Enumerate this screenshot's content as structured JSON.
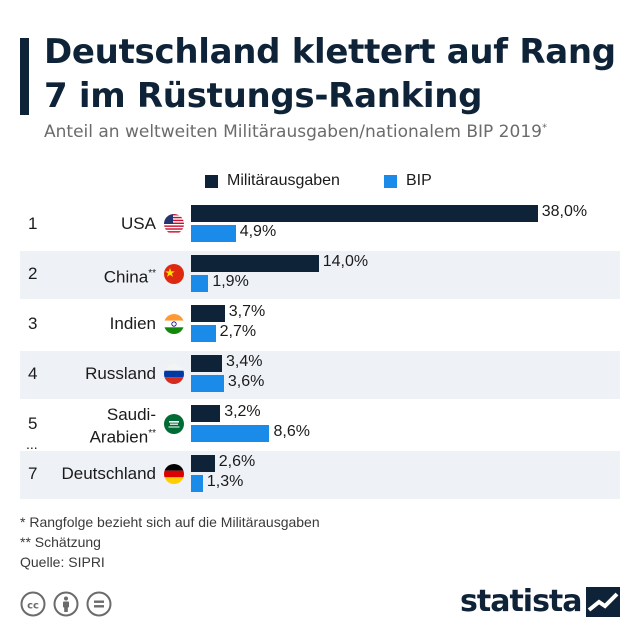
{
  "header": {
    "title": "Deutschland klettert auf Rang 7 im Rüstungs-Ranking",
    "subtitle": "Anteil an weltweiten Militärausgaben/nationalem BIP 2019",
    "subtitle_mark": "*"
  },
  "legend": {
    "military": "Militärausgaben",
    "gdp": "BIP"
  },
  "colors": {
    "military": "#0f2338",
    "gdp": "#1a8be8",
    "row_shade": "#eef1f6"
  },
  "chart_data": {
    "type": "bar",
    "orientation": "horizontal",
    "title": "Deutschland klettert auf Rang 7 im Rüstungs-Ranking",
    "subtitle": "Anteil an weltweiten Militärausgaben/nationalem BIP 2019*",
    "xlim": [
      0,
      40
    ],
    "grid": false,
    "legend_position": "top",
    "categories": [
      "USA",
      "China",
      "Indien",
      "Russland",
      "Saudi-Arabien",
      "Deutschland"
    ],
    "ranks": [
      "1",
      "2",
      "3",
      "4",
      "5",
      "7"
    ],
    "name_marks": [
      "",
      "**",
      "",
      "",
      "**",
      ""
    ],
    "flag_icons": [
      "us-flag-icon",
      "china-flag-icon",
      "india-flag-icon",
      "russia-flag-icon",
      "saudi-arabia-flag-icon",
      "germany-flag-icon"
    ],
    "series": [
      {
        "name": "Militärausgaben",
        "values": [
          38.0,
          14.0,
          3.7,
          3.4,
          3.2,
          2.6
        ],
        "labels": [
          "38,0%",
          "14,0%",
          "3,7%",
          "3,4%",
          "3,2%",
          "2,6%"
        ]
      },
      {
        "name": "BIP",
        "values": [
          4.9,
          1.9,
          2.7,
          3.6,
          8.6,
          1.3
        ],
        "labels": [
          "4,9%",
          "1,9%",
          "2,7%",
          "3,6%",
          "8,6%",
          "1,3%"
        ]
      }
    ],
    "gap_marker": "..."
  },
  "notes": {
    "note1": "*   Rangfolge bezieht sich auf die Militärausgaben",
    "note2": "** Schätzung",
    "source": "Quelle: SIPRI"
  },
  "footer": {
    "brand": "statista",
    "license_icons": [
      "cc-icon",
      "attribution-icon",
      "no-derivatives-icon"
    ]
  }
}
